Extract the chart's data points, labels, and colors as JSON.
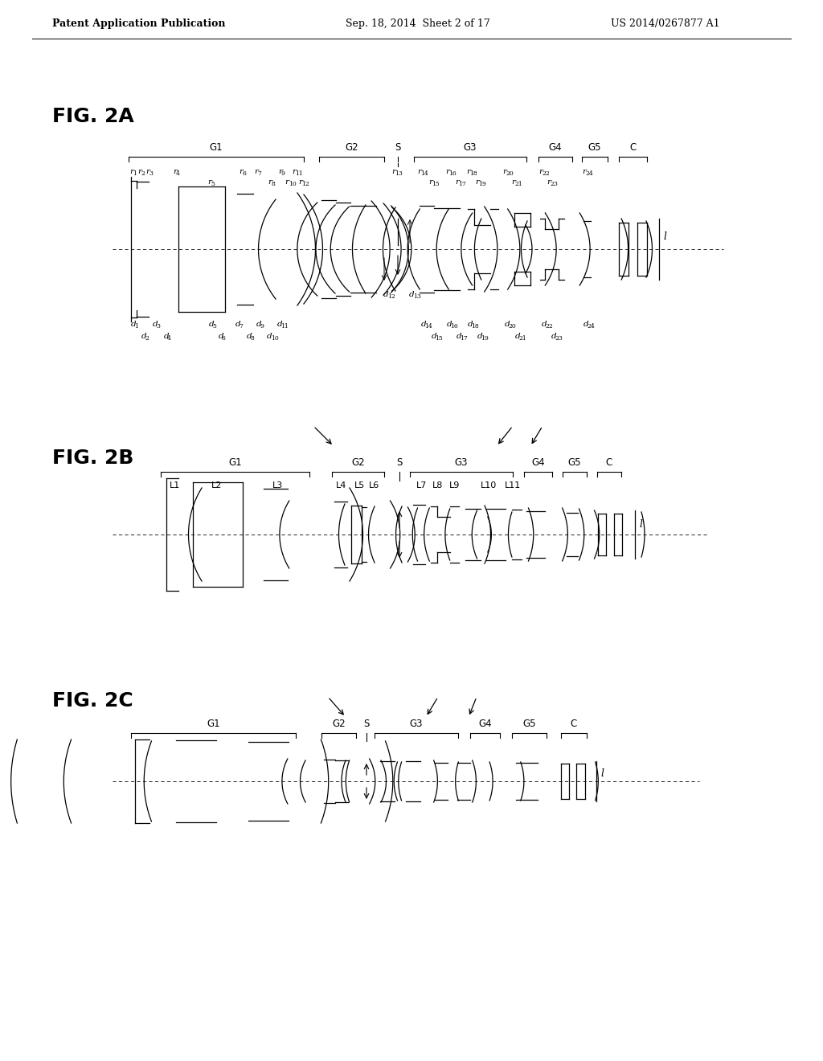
{
  "header_left": "Patent Application Publication",
  "header_center": "Sep. 18, 2014  Sheet 2 of 17",
  "header_right": "US 2014/0267877 A1",
  "fig2a_label": "FIG. 2A",
  "fig2b_label": "FIG. 2B",
  "fig2c_label": "FIG. 2C",
  "bg_color": "#ffffff",
  "line_color": "#000000"
}
